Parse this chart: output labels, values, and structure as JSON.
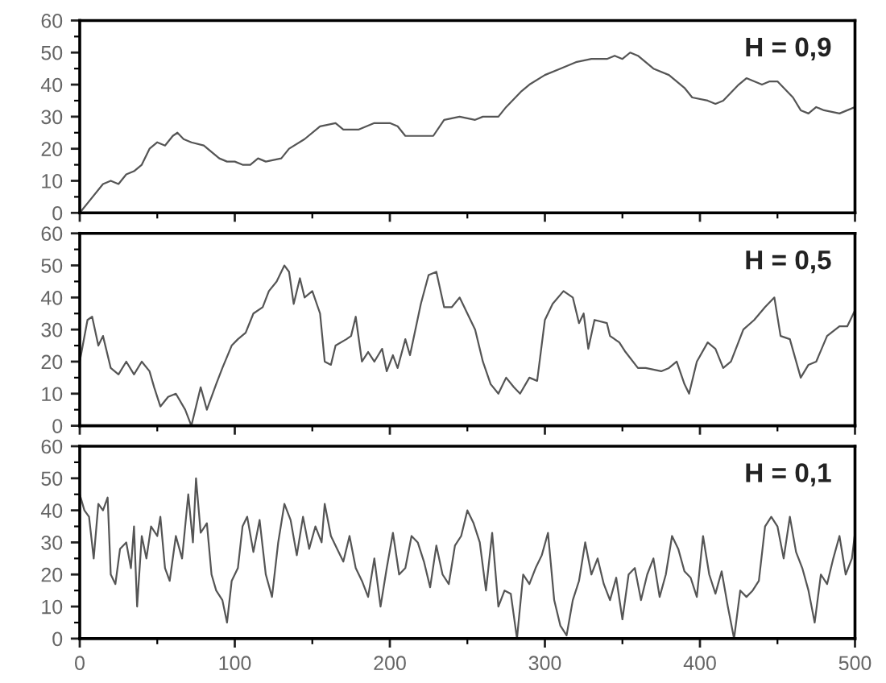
{
  "chart_data": [
    {
      "type": "line",
      "annotations": [
        "H = 0,9"
      ],
      "xlim": [
        0,
        500
      ],
      "xticks": [
        0,
        100,
        200,
        300,
        400,
        500
      ],
      "ylim": [
        0,
        60
      ],
      "yticks": [
        0,
        10,
        20,
        30,
        40,
        50,
        60
      ],
      "tick_labels": "y",
      "grid": false,
      "legend": false,
      "x": [
        0,
        5,
        15,
        20,
        25,
        30,
        35,
        40,
        45,
        50,
        55,
        60,
        63,
        67,
        72,
        80,
        90,
        95,
        100,
        105,
        110,
        115,
        120,
        130,
        135,
        145,
        155,
        165,
        170,
        180,
        190,
        200,
        205,
        210,
        220,
        228,
        235,
        245,
        255,
        260,
        270,
        275,
        285,
        290,
        300,
        310,
        320,
        330,
        340,
        345,
        350,
        355,
        360,
        370,
        380,
        390,
        395,
        405,
        410,
        415,
        425,
        430,
        440,
        445,
        450,
        460,
        465,
        470,
        475,
        480,
        490,
        500
      ],
      "series": [
        {
          "color": "#555555",
          "values": [
            0,
            3,
            9,
            10,
            9,
            12,
            13,
            15,
            20,
            22,
            21,
            24,
            25,
            23,
            22,
            21,
            17,
            16,
            16,
            15,
            15,
            17,
            16,
            17,
            20,
            23,
            27,
            28,
            26,
            26,
            28,
            28,
            27,
            24,
            24,
            24,
            29,
            30,
            29,
            30,
            30,
            33,
            38,
            40,
            43,
            45,
            47,
            48,
            48,
            49,
            48,
            50,
            49,
            45,
            43,
            39,
            36,
            35,
            34,
            35,
            40,
            42,
            40,
            41,
            41,
            36,
            32,
            31,
            33,
            32,
            31,
            33
          ]
        }
      ]
    },
    {
      "type": "line",
      "annotations": [
        "H = 0,5"
      ],
      "xlim": [
        0,
        500
      ],
      "xticks": [
        0,
        100,
        200,
        300,
        400,
        500
      ],
      "ylim": [
        0,
        60
      ],
      "yticks": [
        0,
        10,
        20,
        30,
        40,
        50,
        60
      ],
      "tick_labels": "y",
      "grid": false,
      "legend": false,
      "x": [
        0,
        5,
        8,
        12,
        15,
        20,
        25,
        30,
        35,
        40,
        45,
        48,
        52,
        57,
        62,
        68,
        72,
        78,
        82,
        88,
        92,
        98,
        102,
        107,
        112,
        118,
        122,
        127,
        132,
        135,
        138,
        142,
        145,
        150,
        155,
        158,
        162,
        165,
        172,
        175,
        178,
        182,
        186,
        190,
        195,
        198,
        202,
        205,
        210,
        213,
        220,
        225,
        230,
        235,
        240,
        245,
        250,
        255,
        260,
        265,
        270,
        275,
        280,
        284,
        290,
        295,
        300,
        305,
        312,
        318,
        322,
        325,
        328,
        332,
        340,
        342,
        348,
        352,
        360,
        365,
        375,
        380,
        385,
        390,
        393,
        398,
        405,
        410,
        415,
        420,
        428,
        435,
        442,
        448,
        452,
        458,
        465,
        470,
        475,
        482,
        490,
        495,
        500
      ],
      "series": [
        {
          "color": "#555555",
          "values": [
            20,
            33,
            34,
            25,
            28,
            18,
            16,
            20,
            16,
            20,
            17,
            12,
            6,
            9,
            10,
            5,
            0,
            12,
            5,
            13,
            18,
            25,
            27,
            29,
            35,
            37,
            42,
            45,
            50,
            48,
            38,
            46,
            40,
            42,
            35,
            20,
            19,
            25,
            27,
            28,
            34,
            20,
            23,
            20,
            24,
            17,
            22,
            18,
            27,
            22,
            38,
            47,
            48,
            37,
            37,
            40,
            35,
            30,
            20,
            13,
            10,
            15,
            12,
            10,
            15,
            14,
            33,
            38,
            42,
            40,
            32,
            35,
            24,
            33,
            32,
            28,
            26,
            23,
            18,
            18,
            17,
            18,
            20,
            13,
            10,
            20,
            26,
            24,
            18,
            20,
            30,
            33,
            37,
            40,
            28,
            27,
            15,
            19,
            20,
            28,
            31,
            31,
            36
          ]
        }
      ]
    },
    {
      "type": "line",
      "annotations": [
        "H = 0,1"
      ],
      "xlim": [
        0,
        500
      ],
      "xticks": [
        0,
        100,
        200,
        300,
        400,
        500
      ],
      "ylim": [
        0,
        60
      ],
      "yticks": [
        0,
        10,
        20,
        30,
        40,
        50,
        60
      ],
      "grid": false,
      "legend": false,
      "x": [
        0,
        3,
        6,
        9,
        12,
        15,
        18,
        20,
        23,
        26,
        30,
        33,
        35,
        37,
        40,
        43,
        46,
        50,
        52,
        55,
        58,
        62,
        66,
        70,
        73,
        75,
        78,
        82,
        85,
        88,
        92,
        95,
        98,
        102,
        105,
        108,
        112,
        116,
        120,
        124,
        128,
        132,
        136,
        140,
        144,
        148,
        152,
        156,
        158,
        162,
        166,
        170,
        174,
        178,
        182,
        186,
        190,
        194,
        198,
        202,
        206,
        210,
        214,
        218,
        222,
        226,
        230,
        234,
        238,
        242,
        246,
        250,
        254,
        258,
        262,
        266,
        270,
        274,
        278,
        282,
        286,
        290,
        294,
        298,
        302,
        306,
        310,
        314,
        318,
        322,
        326,
        330,
        334,
        338,
        342,
        346,
        350,
        354,
        358,
        362,
        366,
        370,
        374,
        378,
        382,
        386,
        390,
        394,
        398,
        402,
        406,
        410,
        414,
        418,
        422,
        426,
        430,
        434,
        438,
        442,
        446,
        450,
        454,
        458,
        462,
        466,
        470,
        474,
        478,
        482,
        486,
        490,
        494,
        498,
        500
      ],
      "series": [
        {
          "color": "#555555",
          "values": [
            45,
            40,
            38,
            25,
            42,
            40,
            44,
            20,
            17,
            28,
            30,
            22,
            35,
            10,
            32,
            25,
            35,
            32,
            38,
            22,
            18,
            32,
            25,
            45,
            30,
            50,
            33,
            36,
            20,
            15,
            12,
            5,
            18,
            22,
            35,
            38,
            27,
            37,
            20,
            13,
            30,
            42,
            37,
            26,
            38,
            28,
            35,
            30,
            42,
            32,
            28,
            24,
            32,
            22,
            18,
            13,
            25,
            10,
            22,
            33,
            20,
            22,
            32,
            30,
            24,
            16,
            29,
            20,
            17,
            29,
            32,
            40,
            36,
            30,
            15,
            33,
            10,
            15,
            14,
            0,
            20,
            17,
            22,
            26,
            33,
            12,
            4,
            1,
            12,
            18,
            30,
            20,
            25,
            17,
            12,
            19,
            6,
            20,
            22,
            12,
            20,
            25,
            13,
            20,
            32,
            28,
            21,
            19,
            13,
            32,
            20,
            14,
            21,
            10,
            0,
            15,
            13,
            15,
            18,
            35,
            38,
            35,
            25,
            38,
            27,
            22,
            15,
            5,
            20,
            17,
            25,
            32,
            20,
            25,
            33
          ]
        }
      ]
    }
  ]
}
